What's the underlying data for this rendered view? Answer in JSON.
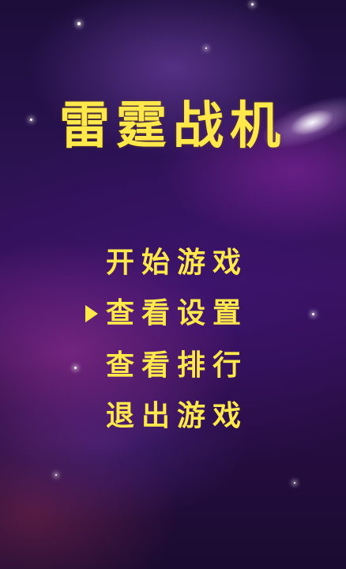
{
  "game": {
    "title": "雷霆战机",
    "menu": [
      {
        "label": "开始游戏",
        "selected": false
      },
      {
        "label": "查看设置",
        "selected": true
      },
      {
        "label": "查看排行",
        "selected": false
      },
      {
        "label": "退出游戏",
        "selected": false
      }
    ]
  },
  "colors": {
    "text": "#ffe94a",
    "background_top": "#1c0d3a",
    "background_bottom": "#1a0b30"
  },
  "icons": {
    "selector": "triangle-right-icon"
  }
}
